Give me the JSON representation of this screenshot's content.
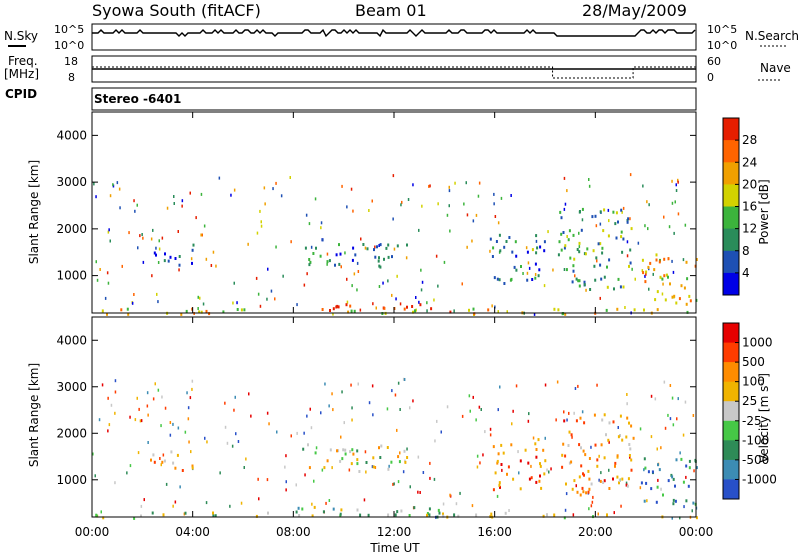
{
  "header": {
    "station": "Syowa South (fitACF)",
    "beam": "Beam 01",
    "date": "28/May/2009"
  },
  "top_panels": {
    "nsky_label": "N.Sky",
    "nsky_ticks": [
      "10^5",
      "10^0"
    ],
    "nsearch_label": "N.Search",
    "nsearch_ticks": [
      "10^5",
      "10^0"
    ],
    "freq_label_line1": "Freq.",
    "freq_label_line2": "[MHz]",
    "freq_ticks": [
      "18",
      "8"
    ],
    "nave_label": "Nave",
    "nave_ticks": [
      "60",
      "0"
    ],
    "cpid_label": "CPID",
    "cpid_value": "Stereo -6401"
  },
  "chart_data": [
    {
      "type": "heatmap",
      "name": "power",
      "ylabel": "Slant Range [km]",
      "xlabel": "Time UT",
      "ylim": [
        200,
        4500
      ],
      "yticks": [
        "4000",
        "3000",
        "2000",
        "1000"
      ],
      "xticks": [
        "00:00",
        "04:00",
        "08:00",
        "12:00",
        "16:00",
        "20:00",
        "00:00"
      ],
      "colorbar": {
        "label": "Power [dB]",
        "ticks": [
          "28",
          "24",
          "20",
          "16",
          "12",
          "8",
          "4"
        ],
        "colors": [
          "#0000e6",
          "#1e50b4",
          "#2a8c5a",
          "#3cb43c",
          "#d2d200",
          "#f0a000",
          "#ff6400",
          "#e61e00"
        ]
      },
      "echo_regions": [
        {
          "t0": 0.0,
          "t1": 24.0,
          "r0": 200,
          "r1": 320,
          "level": 0.6
        },
        {
          "t0": 2.3,
          "t1": 4.0,
          "r0": 1200,
          "r1": 1700,
          "level": 0.15
        },
        {
          "t0": 8.3,
          "t1": 12.5,
          "r0": 1200,
          "r1": 1800,
          "level": 0.2
        },
        {
          "t0": 8.0,
          "t1": 14.3,
          "r0": 250,
          "r1": 450,
          "level": 0.95
        },
        {
          "t0": 15.8,
          "t1": 18.0,
          "r0": 800,
          "r1": 1900,
          "level": 0.3
        },
        {
          "t0": 18.5,
          "t1": 21.5,
          "r0": 700,
          "r1": 2500,
          "level": 0.35
        },
        {
          "t0": 21.8,
          "t1": 24.0,
          "r0": 400,
          "r1": 1500,
          "level": 0.65
        }
      ]
    },
    {
      "type": "heatmap",
      "name": "velocity",
      "ylabel": "Slant Range [km]",
      "xlabel": "Time UT",
      "ylim": [
        200,
        4500
      ],
      "yticks": [
        "4000",
        "3000",
        "2000",
        "1000"
      ],
      "xticks": [
        "00:00",
        "04:00",
        "08:00",
        "12:00",
        "16:00",
        "20:00",
        "00:00"
      ],
      "colorbar": {
        "label": "Velocity [m s-1]",
        "ticks": [
          "1000",
          "500",
          "100",
          "25",
          "-25",
          "-100",
          "-500",
          "-1000"
        ],
        "colors": [
          "#2850c8",
          "#3c8cb4",
          "#2e8b57",
          "#46c846",
          "#c8c8c8",
          "#f0b400",
          "#ff8c00",
          "#ff3c00",
          "#e60000"
        ]
      },
      "echo_regions": [
        {
          "t0": 0.0,
          "t1": 24.0,
          "r0": 200,
          "r1": 320,
          "level": 0.45
        },
        {
          "t0": 2.3,
          "t1": 4.0,
          "r0": 1200,
          "r1": 1700,
          "level": 0.7
        },
        {
          "t0": 8.3,
          "t1": 12.5,
          "r0": 1200,
          "r1": 1800,
          "level": 0.5
        },
        {
          "t0": 8.0,
          "t1": 14.3,
          "r0": 250,
          "r1": 450,
          "level": 0.4
        },
        {
          "t0": 15.8,
          "t1": 18.0,
          "r0": 800,
          "r1": 1900,
          "level": 0.75
        },
        {
          "t0": 18.5,
          "t1": 21.5,
          "r0": 700,
          "r1": 2500,
          "level": 0.7
        },
        {
          "t0": 21.8,
          "t1": 24.0,
          "r0": 400,
          "r1": 1500,
          "level": 0.2
        }
      ]
    }
  ]
}
